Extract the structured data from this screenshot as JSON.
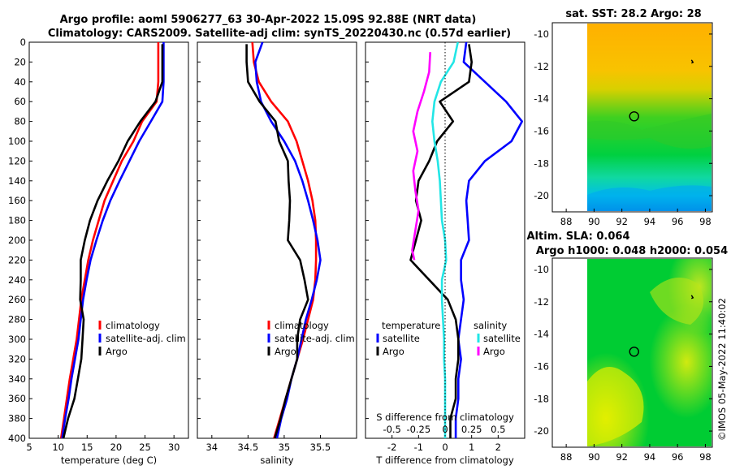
{
  "titles": {
    "line1": "Argo profile: aoml 5906277_63 30-Apr-2022 15.09S 92.88E (NRT data)",
    "line2": "Climatology: CARS2009. Satellite-adj clim: synTS_20220430.nc (0.57d earlier)",
    "sst_title": "sat. SST: 28.2 Argo: 28",
    "sla_title1": "Altim. SLA: 0.064",
    "sla_title2": "Argo h1000: 0.048 h2000: 0.054",
    "credit": "©IMOS 05-May-2022 11:40:02"
  },
  "colors": {
    "climatology": "#ff0000",
    "satellite": "#0000ff",
    "argo": "#000000",
    "s_sat": "#22e6e6",
    "s_argo": "#ff00ff"
  },
  "chart_data": [
    {
      "type": "line",
      "id": "temperature",
      "xlabel": "temperature (deg C)",
      "ylabel": "",
      "xlim": [
        5,
        32.5
      ],
      "ylim": [
        400,
        0
      ],
      "xticks": [
        "5",
        "10",
        "15",
        "20",
        "25",
        "30"
      ],
      "yticks": [
        "0",
        "20",
        "40",
        "60",
        "80",
        "100",
        "120",
        "140",
        "160",
        "180",
        "200",
        "220",
        "240",
        "260",
        "280",
        "300",
        "320",
        "340",
        "360",
        "380",
        "400"
      ],
      "legend": {
        "position": "bottom-right",
        "entries": [
          "climatology",
          "satellite-adj. clim",
          "Argo"
        ]
      },
      "series": [
        {
          "name": "climatology",
          "color": "climatology",
          "x": [
            27.3,
            27.3,
            27.3,
            27.0,
            24.5,
            23.0,
            21.0,
            19.5,
            18.0,
            17.0,
            16.0,
            15.2,
            14.6,
            14.0,
            13.6,
            13.2,
            12.6,
            12.0,
            11.5,
            11.0,
            10.5
          ],
          "y": [
            0,
            20,
            40,
            60,
            80,
            100,
            120,
            140,
            160,
            180,
            200,
            220,
            240,
            260,
            280,
            300,
            320,
            340,
            360,
            380,
            400
          ]
        },
        {
          "name": "satellite-adj. clim",
          "color": "satellite",
          "x": [
            28.2,
            28.2,
            28.2,
            28.0,
            26.0,
            24.0,
            22.3,
            20.6,
            19.0,
            17.7,
            16.6,
            15.6,
            14.9,
            14.3,
            13.9,
            13.5,
            12.9,
            12.3,
            11.8,
            11.2,
            10.7
          ],
          "y": [
            0,
            20,
            40,
            60,
            80,
            100,
            120,
            140,
            160,
            180,
            200,
            220,
            240,
            260,
            280,
            300,
            320,
            340,
            360,
            380,
            400
          ]
        },
        {
          "name": "Argo",
          "color": "argo",
          "x": [
            28.0,
            28.0,
            28.0,
            26.8,
            24.2,
            22.0,
            20.4,
            18.5,
            16.8,
            15.5,
            14.6,
            13.9,
            13.9,
            13.8,
            14.4,
            14.2,
            14.0,
            13.4,
            12.8,
            11.7,
            10.9
          ],
          "y": [
            2,
            20,
            40,
            60,
            80,
            100,
            120,
            140,
            160,
            180,
            200,
            220,
            240,
            260,
            280,
            300,
            320,
            340,
            360,
            380,
            400
          ]
        }
      ]
    },
    {
      "type": "line",
      "id": "salinity",
      "xlabel": "salinity",
      "xlim": [
        33.8,
        36.0
      ],
      "ylim": [
        400,
        0
      ],
      "xticks": [
        "34",
        "34.5",
        "35",
        "35.5"
      ],
      "legend": {
        "position": "bottom-right",
        "entries": [
          "climatology",
          "satellite-adj. clim",
          "Argo"
        ]
      },
      "series": [
        {
          "name": "climatology",
          "color": "climatology",
          "x": [
            34.56,
            34.58,
            34.65,
            34.82,
            35.05,
            35.17,
            35.25,
            35.33,
            35.39,
            35.43,
            35.44,
            35.44,
            35.43,
            35.4,
            35.33,
            35.26,
            35.18,
            35.1,
            35.02,
            34.94,
            34.86
          ],
          "y": [
            0,
            20,
            40,
            60,
            80,
            100,
            120,
            140,
            160,
            180,
            200,
            220,
            240,
            260,
            280,
            300,
            320,
            340,
            360,
            380,
            400
          ]
        },
        {
          "name": "satellite-adj. clim",
          "color": "satellite",
          "x": [
            34.7,
            34.6,
            34.62,
            34.68,
            34.82,
            35.0,
            35.15,
            35.25,
            35.33,
            35.4,
            35.46,
            35.5,
            35.45,
            35.38,
            35.3,
            35.24,
            35.18,
            35.1,
            35.04,
            34.96,
            34.9
          ],
          "y": [
            0,
            20,
            40,
            60,
            80,
            100,
            120,
            140,
            160,
            180,
            200,
            220,
            240,
            260,
            280,
            300,
            320,
            340,
            360,
            380,
            400
          ]
        },
        {
          "name": "Argo",
          "color": "argo",
          "x": [
            34.48,
            34.48,
            34.5,
            34.66,
            34.88,
            34.93,
            35.05,
            35.06,
            35.08,
            35.07,
            35.05,
            35.22,
            35.28,
            35.33,
            35.22,
            35.18,
            35.18,
            35.1,
            35.02,
            34.95,
            34.87
          ],
          "y": [
            2,
            20,
            40,
            60,
            80,
            100,
            120,
            140,
            160,
            180,
            200,
            220,
            240,
            260,
            280,
            300,
            320,
            340,
            360,
            380,
            400
          ]
        }
      ]
    },
    {
      "type": "line",
      "id": "difference",
      "xlabel": "T difference from climatology",
      "xlabel_top": "S difference from climatology",
      "xlim": [
        -3.0,
        3.0
      ],
      "s_xlim": [
        -0.75,
        0.75
      ],
      "ylim": [
        400,
        0
      ],
      "xticks": [
        "-2",
        "-1",
        "0",
        "1",
        "2"
      ],
      "s_xticks": [
        "-0.5",
        "-0.25",
        "0",
        "0.25",
        "0.5"
      ],
      "legend": {
        "position": "bottom",
        "temp_header": "temperature",
        "sal_header": "salinity",
        "temp_entries": [
          "satellite",
          "Argo"
        ],
        "sal_entries": [
          "satellite",
          "Argo"
        ]
      },
      "series": [
        {
          "name": "T satellite",
          "color": "satellite",
          "x": [
            0.8,
            0.7,
            1.5,
            2.3,
            2.9,
            2.5,
            1.5,
            0.9,
            0.8,
            0.85,
            0.9,
            0.6,
            0.6,
            0.7,
            0.6,
            0.5,
            0.6,
            0.5,
            0.5,
            0.4,
            0.4
          ],
          "y": [
            0,
            20,
            40,
            60,
            80,
            100,
            120,
            140,
            160,
            180,
            200,
            220,
            240,
            260,
            280,
            300,
            320,
            340,
            360,
            380,
            400
          ]
        },
        {
          "name": "T Argo",
          "color": "argo",
          "x": [
            0.9,
            1.0,
            0.9,
            -0.2,
            0.3,
            -0.3,
            -0.6,
            -1.0,
            -1.1,
            -0.9,
            -1.1,
            -1.3,
            -0.6,
            0.1,
            0.4,
            0.5,
            0.5,
            0.4,
            0.4,
            0.2,
            0.2
          ],
          "y": [
            2,
            20,
            40,
            60,
            80,
            100,
            120,
            140,
            160,
            180,
            200,
            220,
            240,
            260,
            280,
            300,
            320,
            340,
            360,
            380,
            400
          ]
        },
        {
          "name": "S satellite",
          "color": "s_sat",
          "x": [
            0.12,
            0.08,
            -0.04,
            -0.1,
            -0.12,
            -0.1,
            -0.07,
            -0.05,
            -0.04,
            -0.03,
            0.0,
            0.01,
            -0.03,
            -0.03,
            -0.02,
            -0.01,
            -0.01,
            0.0,
            0.0,
            0.0,
            0.0
          ],
          "y": [
            0,
            20,
            40,
            60,
            80,
            100,
            120,
            140,
            160,
            180,
            200,
            220,
            240,
            260,
            280,
            300,
            320,
            340,
            360,
            380,
            400
          ]
        },
        {
          "name": "S Argo",
          "color": "s_argo",
          "x": [
            -0.14,
            -0.15,
            -0.2,
            -0.26,
            -0.3,
            -0.26,
            -0.3,
            -0.28,
            -0.25,
            -0.28,
            -0.31,
            -0.29
          ],
          "y": [
            10,
            30,
            50,
            70,
            90,
            110,
            130,
            150,
            170,
            190,
            210,
            220
          ]
        }
      ]
    },
    {
      "type": "heatmap",
      "id": "sst_map",
      "title": "sat. SST: 28.2 Argo: 28",
      "xlim": [
        87,
        98.5
      ],
      "ylim": [
        -21,
        -9.3
      ],
      "xticks": [
        "88",
        "90",
        "92",
        "94",
        "96",
        "98"
      ],
      "yticks": [
        "-10",
        "-12",
        "-14",
        "-16",
        "-18",
        "-20"
      ],
      "argo_position": {
        "lon": 92.88,
        "lat": -15.09
      }
    },
    {
      "type": "heatmap",
      "id": "sla_map",
      "title": "Altim. SLA: 0.064",
      "xlim": [
        87,
        98.5
      ],
      "ylim": [
        -21,
        -9.3
      ],
      "xticks": [
        "88",
        "90",
        "92",
        "94",
        "96",
        "98"
      ],
      "yticks": [
        "-10",
        "-12",
        "-14",
        "-16",
        "-18",
        "-20"
      ],
      "argo_position": {
        "lon": 92.88,
        "lat": -15.09
      }
    }
  ]
}
